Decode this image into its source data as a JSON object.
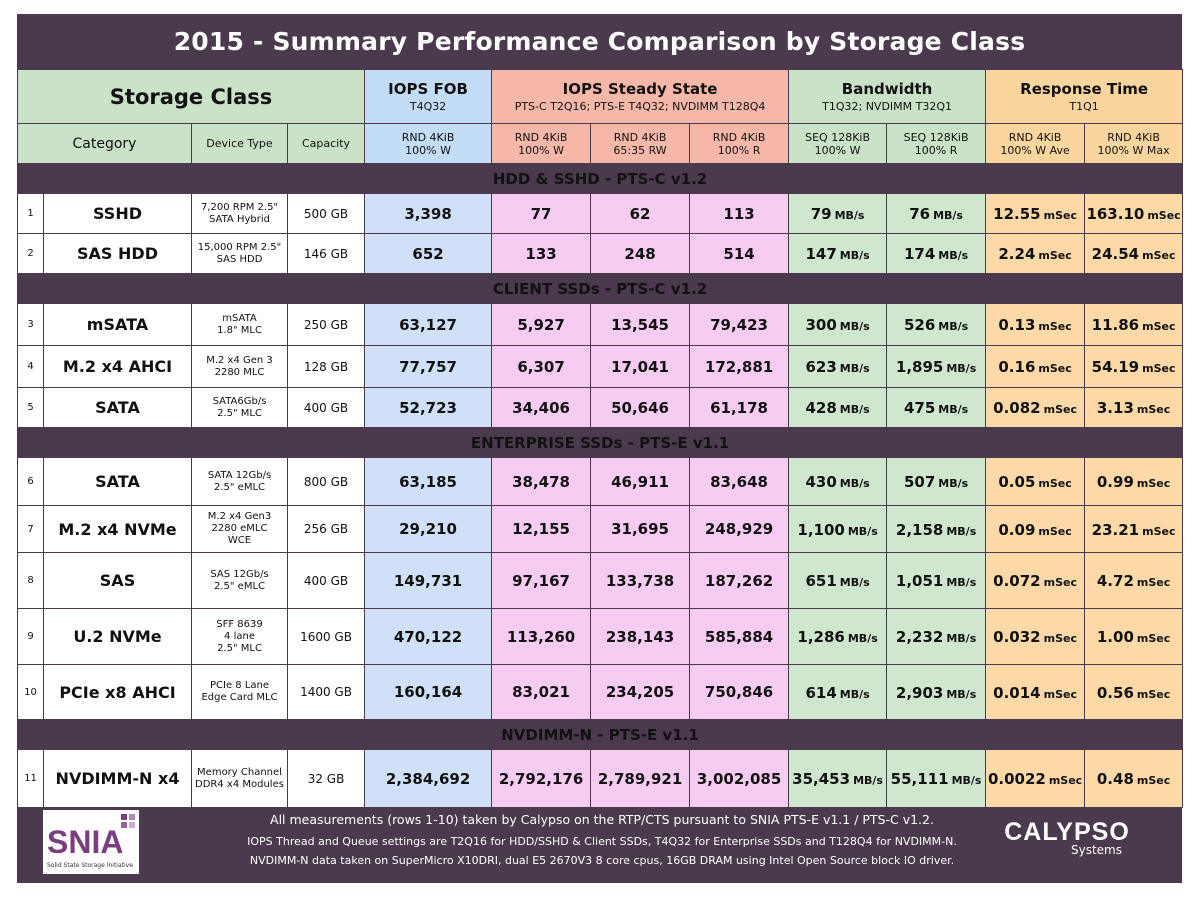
{
  "title": "2015 - Summary Performance Comparison by Storage Class",
  "header": {
    "storage_class": "Storage Class",
    "iops_fob": {
      "title": "IOPS FOB",
      "sub": "T4Q32"
    },
    "iops_ss": {
      "title": "IOPS Steady State",
      "sub": "PTS-C T2Q16; PTS-E T4Q32; NVDIMM T128Q4"
    },
    "bandwidth": {
      "title": "Bandwidth",
      "sub": "T1Q32; NVDIMM T32Q1"
    },
    "response": {
      "title": "Response Time",
      "sub": "T1Q1"
    },
    "category": "Category",
    "device_type": "Device Type",
    "capacity": "Capacity",
    "sub_cols": [
      [
        "RND 4KiB",
        "100% W"
      ],
      [
        "RND 4KiB",
        "100% W"
      ],
      [
        "RND 4KiB",
        "65:35 RW"
      ],
      [
        "RND 4KiB",
        "100% R"
      ],
      [
        "SEQ 128KiB",
        "100% W"
      ],
      [
        "SEQ 128KiB",
        "100% R"
      ],
      [
        "RND 4KiB",
        "100% W Ave"
      ],
      [
        "RND 4KiB",
        "100% W Max"
      ]
    ]
  },
  "units": {
    "bw": "MB/s",
    "rt": "mSec"
  },
  "sections": [
    {
      "title": "HDD & SSHD - PTS-C v1.2",
      "rows": [
        {
          "num": "1",
          "category": "SSHD",
          "device": [
            "7,200 RPM 2.5\"",
            "SATA Hybrid"
          ],
          "capacity": "500 GB",
          "iops_fob": "3,398",
          "ss_w": "77",
          "ss_rw": "62",
          "ss_r": "113",
          "bw_w": "79",
          "bw_r": "76",
          "rt_ave": "12.55",
          "rt_max": "163.10"
        },
        {
          "num": "2",
          "category": "SAS HDD",
          "device": [
            "15,000 RPM 2.5\"",
            "SAS HDD"
          ],
          "capacity": "146 GB",
          "iops_fob": "652",
          "ss_w": "133",
          "ss_rw": "248",
          "ss_r": "514",
          "bw_w": "147",
          "bw_r": "174",
          "rt_ave": "2.24",
          "rt_max": "24.54"
        }
      ]
    },
    {
      "title": "CLIENT SSDs - PTS-C v1.2",
      "rows": [
        {
          "num": "3",
          "category": "mSATA",
          "device": [
            "mSATA",
            "1.8\" MLC"
          ],
          "capacity": "250 GB",
          "iops_fob": "63,127",
          "ss_w": "5,927",
          "ss_rw": "13,545",
          "ss_r": "79,423",
          "bw_w": "300",
          "bw_r": "526",
          "rt_ave": "0.13",
          "rt_max": "11.86"
        },
        {
          "num": "4",
          "category": "M.2 x4 AHCI",
          "device": [
            "M.2 x4 Gen 3",
            "2280 MLC"
          ],
          "capacity": "128 GB",
          "iops_fob": "77,757",
          "ss_w": "6,307",
          "ss_rw": "17,041",
          "ss_r": "172,881",
          "bw_w": "623",
          "bw_r": "1,895",
          "rt_ave": "0.16",
          "rt_max": "54.19"
        },
        {
          "num": "5",
          "category": "SATA",
          "device": [
            "SATA6Gb/s",
            "2.5\" MLC"
          ],
          "capacity": "400 GB",
          "iops_fob": "52,723",
          "ss_w": "34,406",
          "ss_rw": "50,646",
          "ss_r": "61,178",
          "bw_w": "428",
          "bw_r": "475",
          "rt_ave": "0.082",
          "rt_max": "3.13"
        }
      ]
    },
    {
      "title": "ENTERPRISE SSDs - PTS-E v1.1",
      "rows": [
        {
          "num": "6",
          "category": "SATA",
          "device": [
            "SATA 12Gb/s",
            "2.5\" eMLC"
          ],
          "capacity": "800 GB",
          "iops_fob": "63,185",
          "ss_w": "38,478",
          "ss_rw": "46,911",
          "ss_r": "83,648",
          "bw_w": "430",
          "bw_r": "507",
          "rt_ave": "0.05",
          "rt_max": "0.99"
        },
        {
          "num": "7",
          "category": "M.2 x4 NVMe",
          "device": [
            "M.2 x4 Gen3",
            "2280 eMLC",
            "WCE"
          ],
          "capacity": "256 GB",
          "iops_fob": "29,210",
          "ss_w": "12,155",
          "ss_rw": "31,695",
          "ss_r": "248,929",
          "bw_w": "1,100",
          "bw_r": "2,158",
          "rt_ave": "0.09",
          "rt_max": "23.21"
        },
        {
          "num": "8",
          "category": "SAS",
          "device": [
            "SAS 12Gb/s",
            "2.5\" eMLC"
          ],
          "capacity": "400 GB",
          "iops_fob": "149,731",
          "ss_w": "97,167",
          "ss_rw": "133,738",
          "ss_r": "187,262",
          "bw_w": "651",
          "bw_r": "1,051",
          "rt_ave": "0.072",
          "rt_max": "4.72"
        },
        {
          "num": "9",
          "category": "U.2 NVMe",
          "device": [
            "SFF 8639",
            "4 lane",
            "2.5\" MLC"
          ],
          "capacity": "1600 GB",
          "iops_fob": "470,122",
          "ss_w": "113,260",
          "ss_rw": "238,143",
          "ss_r": "585,884",
          "bw_w": "1,286",
          "bw_r": "2,232",
          "rt_ave": "0.032",
          "rt_max": "1.00"
        },
        {
          "num": "10",
          "category": "PCIe x8 AHCI",
          "device": [
            "PCIe 8 Lane",
            "Edge Card MLC"
          ],
          "capacity": "1400 GB",
          "iops_fob": "160,164",
          "ss_w": "83,021",
          "ss_rw": "234,205",
          "ss_r": "750,846",
          "bw_w": "614",
          "bw_r": "2,903",
          "rt_ave": "0.014",
          "rt_max": "0.56"
        }
      ]
    },
    {
      "title": "NVDIMM-N - PTS-E v1.1",
      "rows": [
        {
          "num": "11",
          "category": "NVDIMM-N x4",
          "device": [
            "Memory Channel",
            "DDR4 x4 Modules"
          ],
          "capacity": "32 GB",
          "iops_fob": "2,384,692",
          "ss_w": "2,792,176",
          "ss_rw": "2,789,921",
          "ss_r": "3,002,085",
          "bw_w": "35,453",
          "bw_r": "55,111",
          "rt_ave": "0.0022",
          "rt_max": "0.48"
        }
      ]
    }
  ],
  "footer": {
    "line1": "All measurements (rows 1-10) taken by Calypso on the RTP/CTS pursuant to SNIA PTS-E v1.1 / PTS-C v1.2.",
    "line2": "IOPS Thread and Queue settings are T2Q16 for HDD/SSHD & Client SSDs, T4Q32 for Enterprise SSDs and T128Q4 for NVDIMM-N.",
    "line3": "NVDIMM-N data taken on SuperMicro X10DRI, dual E5 2670V3 8 core cpus, 16GB DRAM using Intel Open Source block IO driver.",
    "snia_logo": {
      "word": "SNIA",
      "tagline": "Solid State Storage Initiative",
      "icon": "snia-logo"
    },
    "calypso_logo": {
      "word": "CALYPSO",
      "sub": "Systems",
      "icon": "calypso-logo"
    }
  },
  "colors": {
    "frame": "#4b3a4e",
    "storage_class_bg": "#c9e2c8",
    "iops_fob_bg": "#c4ddf7",
    "iops_ss_bg": "#f7b8a9",
    "iops_ss_values_bg": "#f5c6ef",
    "bandwidth_bg": "#c9e2c8",
    "response_bg": "#fad59e"
  }
}
